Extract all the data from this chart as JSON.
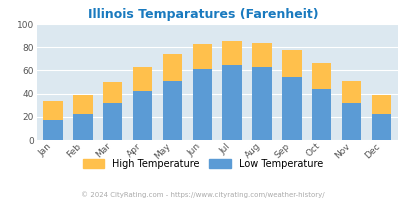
{
  "title": "Illinois Temparatures (Farenheit)",
  "months": [
    "Jan",
    "Feb",
    "Mar",
    "Apr",
    "May",
    "Jun",
    "Jul",
    "Aug",
    "Sep",
    "Oct",
    "Nov",
    "Dec"
  ],
  "low_temps": [
    17,
    22,
    32,
    42,
    51,
    61,
    65,
    63,
    54,
    44,
    32,
    22
  ],
  "high_temps": [
    34,
    39,
    50,
    63,
    74,
    83,
    85,
    84,
    78,
    66,
    51,
    39
  ],
  "bar_color_low": "#5b9bd5",
  "bar_color_high": "#ffc04c",
  "bg_color": "#dce8f0",
  "title_color": "#1a7abf",
  "legend_label_high": "High Temperature",
  "legend_label_low": "Low Temperature",
  "footer": "© 2024 CityRating.com - https://www.cityrating.com/weather-history/",
  "ylim": [
    0,
    100
  ],
  "yticks": [
    0,
    20,
    40,
    60,
    80,
    100
  ]
}
